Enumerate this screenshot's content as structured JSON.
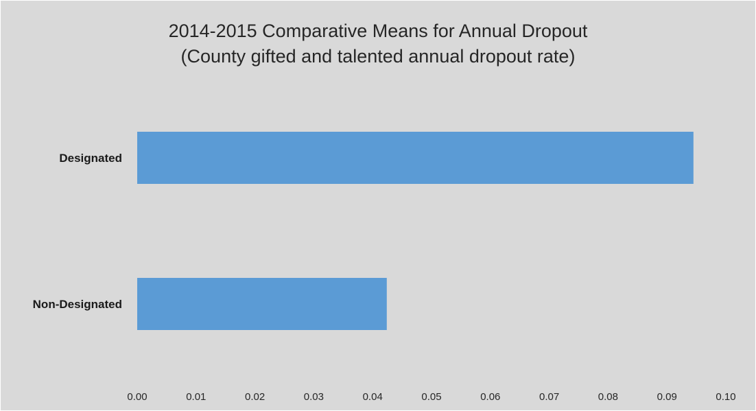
{
  "chart_data": {
    "type": "bar",
    "orientation": "horizontal",
    "title": "2014-2015 Comparative Means for Annual Dropout",
    "subtitle": "(County gifted and talented annual dropout rate)",
    "categories": [
      "Designated",
      "Non-Designated"
    ],
    "values": [
      0.0945,
      0.0424
    ],
    "xlim": [
      0.0,
      0.1
    ],
    "x_ticks": [
      "0.00",
      "0.01",
      "0.02",
      "0.03",
      "0.04",
      "0.05",
      "0.06",
      "0.07",
      "0.08",
      "0.09",
      "0.10"
    ],
    "xlabel": "",
    "ylabel": "",
    "grid": false,
    "legend": false,
    "bar_color": "#5b9bd5",
    "background_color": "#d9d9d9"
  }
}
